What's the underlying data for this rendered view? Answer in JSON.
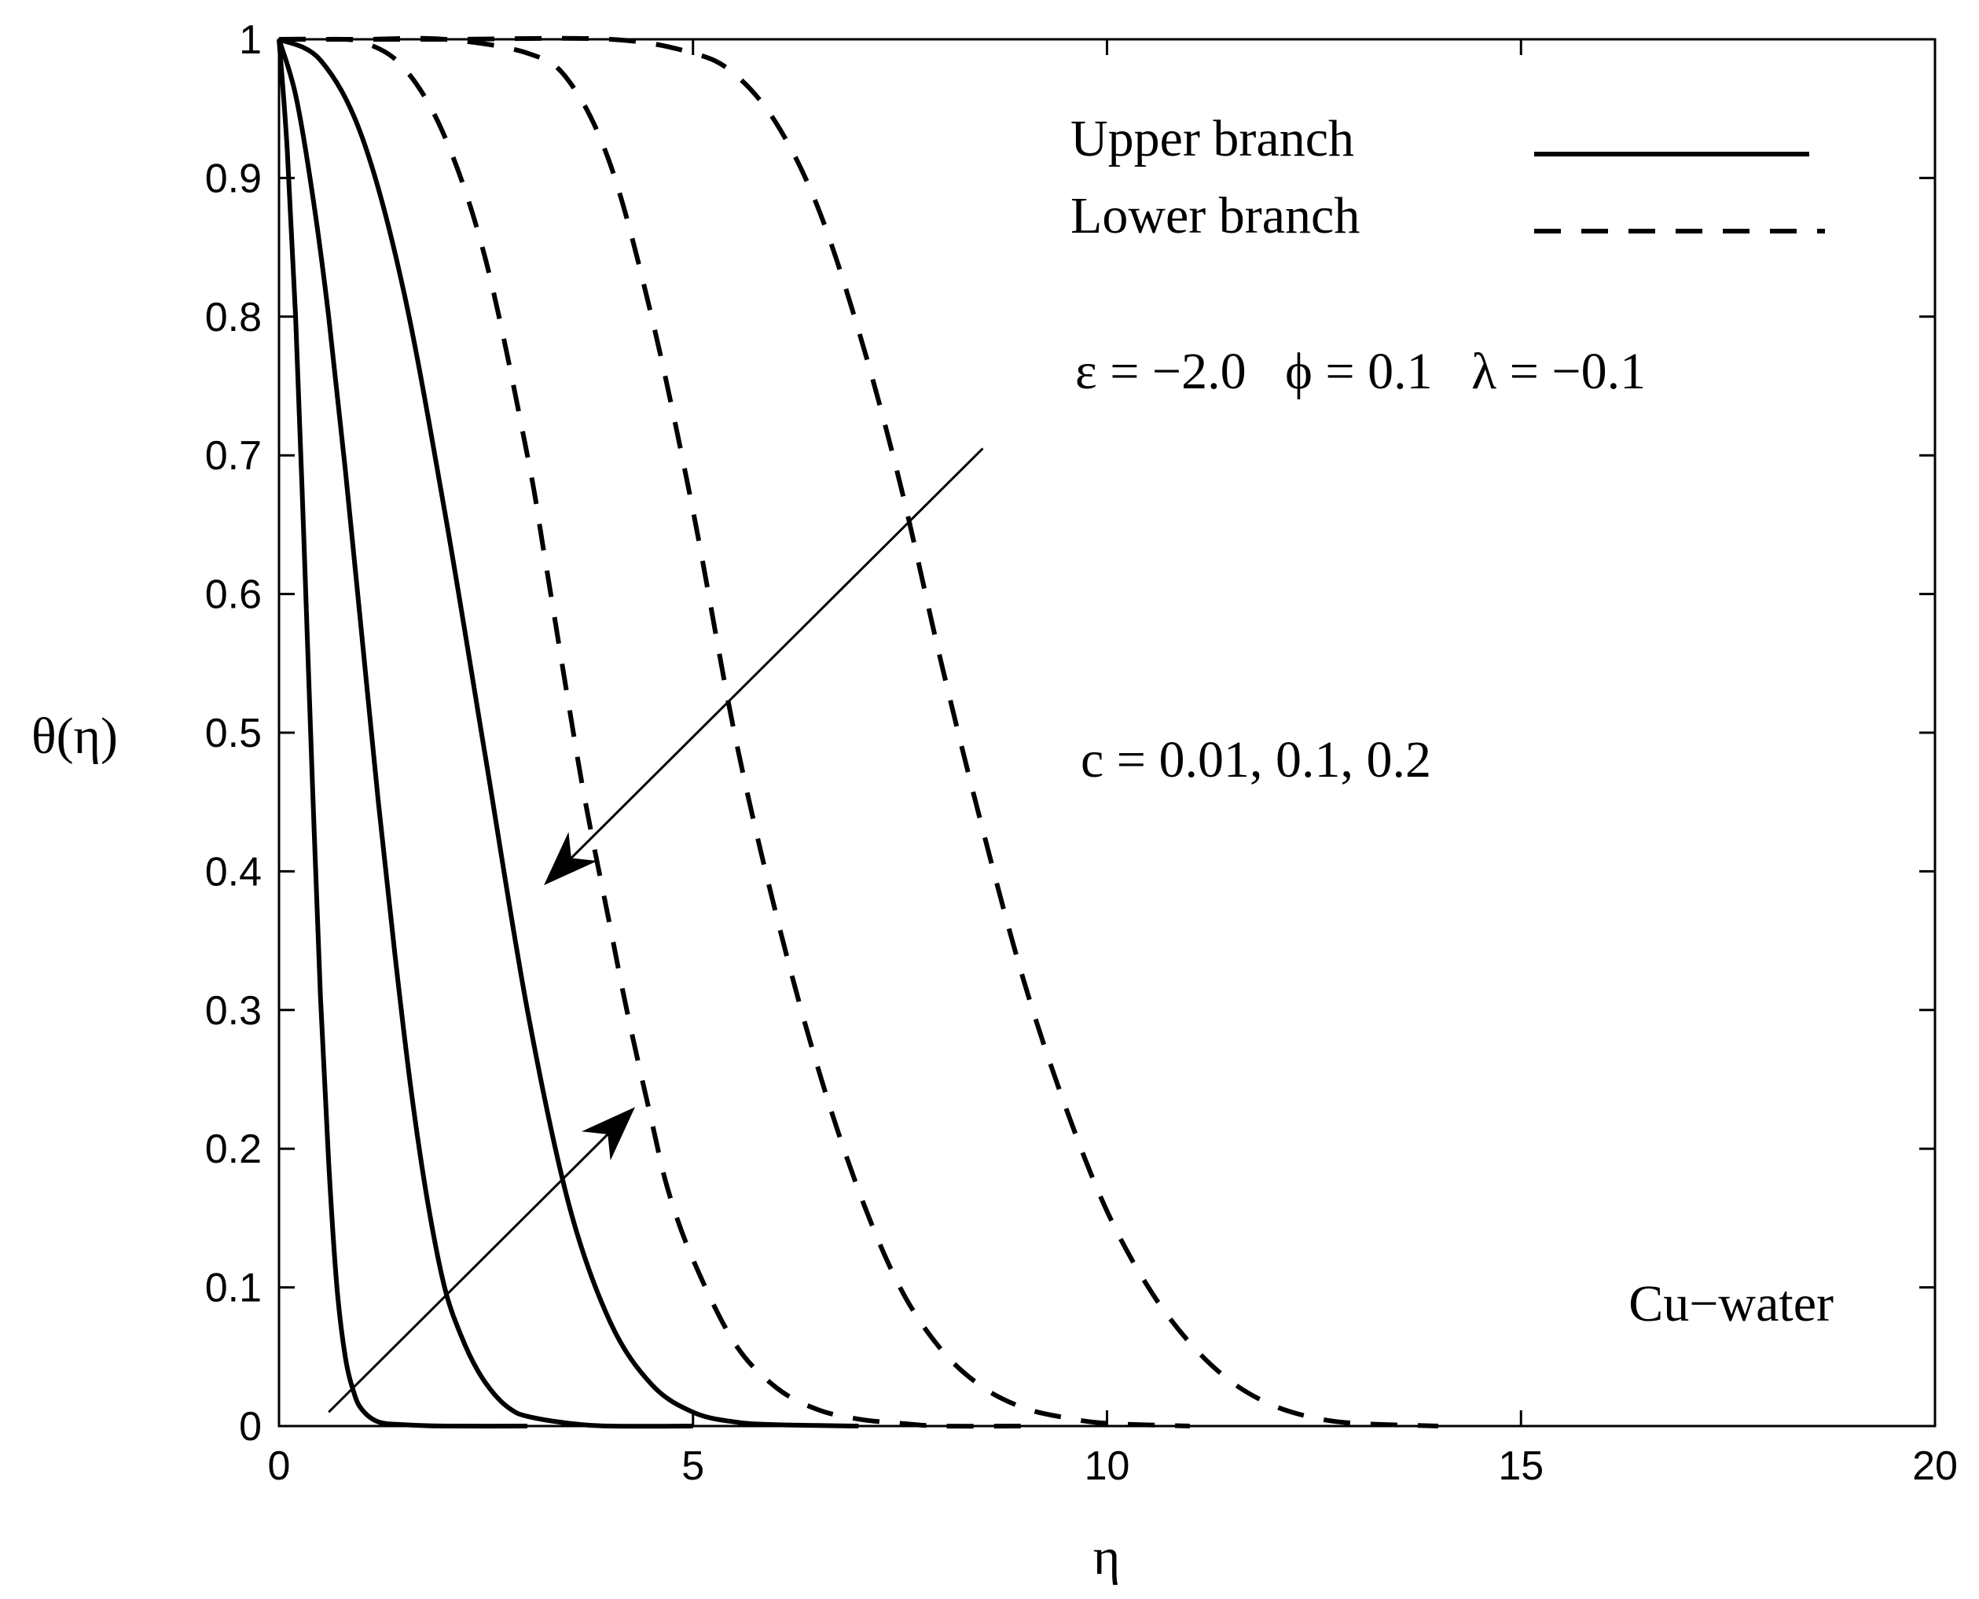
{
  "chart_data": {
    "type": "line",
    "xlabel": "η",
    "ylabel": "θ(η)",
    "xlim": [
      0,
      20
    ],
    "ylim": [
      0,
      1
    ],
    "xticks": [
      0,
      5,
      10,
      15,
      20
    ],
    "xtick_labels": [
      "0",
      "5",
      "10",
      "15",
      "20"
    ],
    "yticks": [
      0,
      0.1,
      0.2,
      0.3,
      0.4,
      0.5,
      0.6,
      0.7,
      0.8,
      0.9,
      1
    ],
    "ytick_labels": [
      "0",
      "0.1",
      "0.2",
      "0.3",
      "0.4",
      "0.5",
      "0.6",
      "0.7",
      "0.8",
      "0.9",
      "1"
    ],
    "grid": false,
    "legend": {
      "placement": "top-right",
      "entries": [
        {
          "label": "Upper branch",
          "style": "solid"
        },
        {
          "label": "Lower branch",
          "style": "dashed"
        }
      ]
    },
    "annotations": {
      "params": "ε = −2.0   ϕ = 0.1   λ = −0.1",
      "c_values": "c = 0.01, 0.1, 0.2",
      "fluid": "Cu−water"
    },
    "arrows": [
      {
        "from": [
          8.5,
          0.705
        ],
        "to": [
          3.2,
          0.39
        ]
      },
      {
        "from": [
          0.6,
          0.01
        ],
        "to": [
          4.3,
          0.23
        ]
      }
    ],
    "series": [
      {
        "branch": "upper",
        "style": "solid",
        "x": [
          0,
          0.1,
          0.2,
          0.3,
          0.4,
          0.5,
          0.6,
          0.7,
          0.8,
          0.9,
          1.0,
          1.2,
          1.5,
          2.0,
          3.0
        ],
        "y": [
          1,
          0.92,
          0.8,
          0.64,
          0.47,
          0.31,
          0.19,
          0.1,
          0.05,
          0.025,
          0.012,
          0.003,
          0.001,
          0,
          0
        ]
      },
      {
        "branch": "upper",
        "style": "solid",
        "x": [
          0,
          0.2,
          0.4,
          0.6,
          0.8,
          1.0,
          1.2,
          1.4,
          1.6,
          1.8,
          2.0,
          2.2,
          2.4,
          2.6,
          2.8,
          3.0,
          3.5,
          4.0,
          5.0
        ],
        "y": [
          1,
          0.96,
          0.89,
          0.8,
          0.69,
          0.57,
          0.45,
          0.34,
          0.24,
          0.16,
          0.1,
          0.065,
          0.04,
          0.023,
          0.012,
          0.007,
          0.002,
          0,
          0
        ]
      },
      {
        "branch": "upper",
        "style": "solid",
        "x": [
          0,
          0.5,
          1.0,
          1.5,
          2.0,
          2.5,
          3.0,
          3.5,
          4.0,
          4.5,
          5.0,
          5.5,
          6.0,
          7.0
        ],
        "y": [
          1,
          0.985,
          0.93,
          0.82,
          0.66,
          0.48,
          0.3,
          0.16,
          0.075,
          0.03,
          0.01,
          0.003,
          0.001,
          0
        ]
      },
      {
        "branch": "lower",
        "style": "dashed",
        "x": [
          0,
          0.5,
          1.0,
          1.5,
          2.0,
          2.5,
          3.0,
          3.2,
          3.5,
          3.7,
          4.0,
          4.2,
          4.5,
          4.7,
          5.0,
          5.5,
          6.0,
          6.5,
          7.0,
          7.5,
          8.0,
          9.0
        ],
        "y": [
          1,
          1,
          0.998,
          0.98,
          0.93,
          0.84,
          0.7,
          0.63,
          0.52,
          0.45,
          0.36,
          0.3,
          0.22,
          0.17,
          0.12,
          0.06,
          0.028,
          0.012,
          0.005,
          0.002,
          0,
          0
        ]
      },
      {
        "branch": "lower",
        "style": "dashed",
        "x": [
          0,
          1.0,
          2.0,
          3.0,
          3.5,
          4.0,
          4.5,
          5.0,
          5.5,
          6.0,
          6.5,
          7.0,
          7.5,
          8.0,
          8.5,
          9.0,
          9.5,
          10.0,
          11.0
        ],
        "y": [
          1,
          1,
          1,
          0.99,
          0.97,
          0.91,
          0.8,
          0.66,
          0.5,
          0.37,
          0.26,
          0.17,
          0.1,
          0.055,
          0.028,
          0.013,
          0.006,
          0.002,
          0
        ]
      },
      {
        "branch": "lower",
        "style": "dashed",
        "x": [
          0,
          2.0,
          4.0,
          5.0,
          5.5,
          6.0,
          6.5,
          7.0,
          7.5,
          8.0,
          8.5,
          9.0,
          9.5,
          10.0,
          10.5,
          11.0,
          11.5,
          12.0,
          12.5,
          13.0,
          14.0
        ],
        "y": [
          1,
          1,
          1,
          0.99,
          0.975,
          0.94,
          0.88,
          0.79,
          0.68,
          0.55,
          0.43,
          0.32,
          0.23,
          0.155,
          0.1,
          0.06,
          0.032,
          0.015,
          0.006,
          0.002,
          0
        ]
      }
    ]
  }
}
